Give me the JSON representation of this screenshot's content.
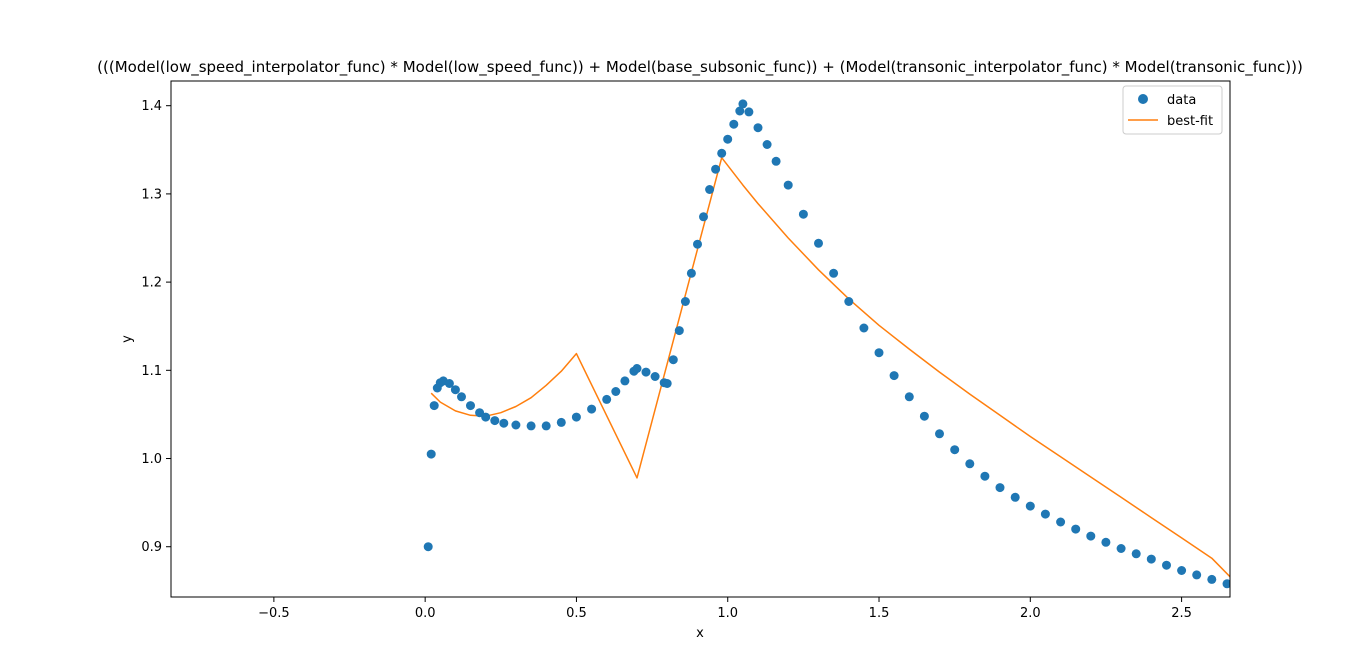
{
  "chart_data": {
    "type": "scatter",
    "title": "(((Model(low_speed_interpolator_func) * Model(low_speed_func)) + Model(base_subsonic_func)) + (Model(transonic_interpolator_func) * Model(transonic_func)))",
    "xlabel": "x",
    "ylabel": "y",
    "xlim": [
      -0.84,
      2.66
    ],
    "ylim": [
      0.843,
      1.428
    ],
    "xticks": [
      "−0.5",
      "0.0",
      "0.5",
      "1.0",
      "1.5",
      "2.0",
      "2.5"
    ],
    "xtick_values": [
      -0.5,
      0.0,
      0.5,
      1.0,
      1.5,
      2.0,
      2.5
    ],
    "yticks": [
      "0.9",
      "1.0",
      "1.1",
      "1.2",
      "1.3",
      "1.4"
    ],
    "ytick_values": [
      0.9,
      1.0,
      1.1,
      1.2,
      1.3,
      1.4
    ],
    "grid": false,
    "legend_position": "top-right",
    "series": [
      {
        "name": "data",
        "kind": "markers",
        "color": "#1f77b4",
        "points": [
          [
            0.01,
            0.9
          ],
          [
            0.02,
            1.005
          ],
          [
            0.03,
            1.06
          ],
          [
            0.04,
            1.08
          ],
          [
            0.05,
            1.086
          ],
          [
            0.06,
            1.088
          ],
          [
            0.08,
            1.085
          ],
          [
            0.1,
            1.078
          ],
          [
            0.12,
            1.07
          ],
          [
            0.15,
            1.06
          ],
          [
            0.18,
            1.052
          ],
          [
            0.2,
            1.047
          ],
          [
            0.23,
            1.043
          ],
          [
            0.26,
            1.04
          ],
          [
            0.3,
            1.038
          ],
          [
            0.35,
            1.037
          ],
          [
            0.4,
            1.037
          ],
          [
            0.45,
            1.041
          ],
          [
            0.5,
            1.047
          ],
          [
            0.55,
            1.056
          ],
          [
            0.6,
            1.067
          ],
          [
            0.63,
            1.076
          ],
          [
            0.66,
            1.088
          ],
          [
            0.69,
            1.099
          ],
          [
            0.7,
            1.102
          ],
          [
            0.73,
            1.098
          ],
          [
            0.76,
            1.093
          ],
          [
            0.79,
            1.086
          ],
          [
            0.8,
            1.085
          ],
          [
            0.82,
            1.112
          ],
          [
            0.84,
            1.145
          ],
          [
            0.86,
            1.178
          ],
          [
            0.88,
            1.21
          ],
          [
            0.9,
            1.243
          ],
          [
            0.92,
            1.274
          ],
          [
            0.94,
            1.305
          ],
          [
            0.96,
            1.328
          ],
          [
            0.98,
            1.346
          ],
          [
            1.0,
            1.362
          ],
          [
            1.02,
            1.379
          ],
          [
            1.04,
            1.394
          ],
          [
            1.05,
            1.402
          ],
          [
            1.07,
            1.393
          ],
          [
            1.1,
            1.375
          ],
          [
            1.13,
            1.356
          ],
          [
            1.16,
            1.337
          ],
          [
            1.2,
            1.31
          ],
          [
            1.25,
            1.277
          ],
          [
            1.3,
            1.244
          ],
          [
            1.35,
            1.21
          ],
          [
            1.4,
            1.178
          ],
          [
            1.45,
            1.148
          ],
          [
            1.5,
            1.12
          ],
          [
            1.55,
            1.094
          ],
          [
            1.6,
            1.07
          ],
          [
            1.65,
            1.048
          ],
          [
            1.7,
            1.028
          ],
          [
            1.75,
            1.01
          ],
          [
            1.8,
            0.994
          ],
          [
            1.85,
            0.98
          ],
          [
            1.9,
            0.967
          ],
          [
            1.95,
            0.956
          ],
          [
            2.0,
            0.946
          ],
          [
            2.05,
            0.937
          ],
          [
            2.1,
            0.928
          ],
          [
            2.15,
            0.92
          ],
          [
            2.2,
            0.912
          ],
          [
            2.25,
            0.905
          ],
          [
            2.3,
            0.898
          ],
          [
            2.35,
            0.892
          ],
          [
            2.4,
            0.886
          ],
          [
            2.45,
            0.879
          ],
          [
            2.5,
            0.873
          ],
          [
            2.55,
            0.868
          ],
          [
            2.6,
            0.863
          ],
          [
            2.65,
            0.858
          ]
        ]
      },
      {
        "name": "best-fit",
        "kind": "line",
        "color": "#ff7f0e",
        "points": [
          [
            0.02,
            1.074
          ],
          [
            0.05,
            1.064
          ],
          [
            0.1,
            1.054
          ],
          [
            0.15,
            1.049
          ],
          [
            0.2,
            1.048
          ],
          [
            0.25,
            1.052
          ],
          [
            0.3,
            1.059
          ],
          [
            0.35,
            1.069
          ],
          [
            0.4,
            1.083
          ],
          [
            0.45,
            1.099
          ],
          [
            0.5,
            1.119
          ],
          [
            0.7,
            0.978
          ],
          [
            0.98,
            1.341
          ],
          [
            1.05,
            1.31
          ],
          [
            1.1,
            1.289
          ],
          [
            1.2,
            1.25
          ],
          [
            1.3,
            1.214
          ],
          [
            1.4,
            1.181
          ],
          [
            1.5,
            1.151
          ],
          [
            1.6,
            1.124
          ],
          [
            1.7,
            1.098
          ],
          [
            1.8,
            1.073
          ],
          [
            1.9,
            1.049
          ],
          [
            2.0,
            1.025
          ],
          [
            2.1,
            1.002
          ],
          [
            2.2,
            0.979
          ],
          [
            2.3,
            0.956
          ],
          [
            2.4,
            0.933
          ],
          [
            2.5,
            0.91
          ],
          [
            2.6,
            0.887
          ],
          [
            2.66,
            0.866
          ]
        ]
      }
    ]
  }
}
